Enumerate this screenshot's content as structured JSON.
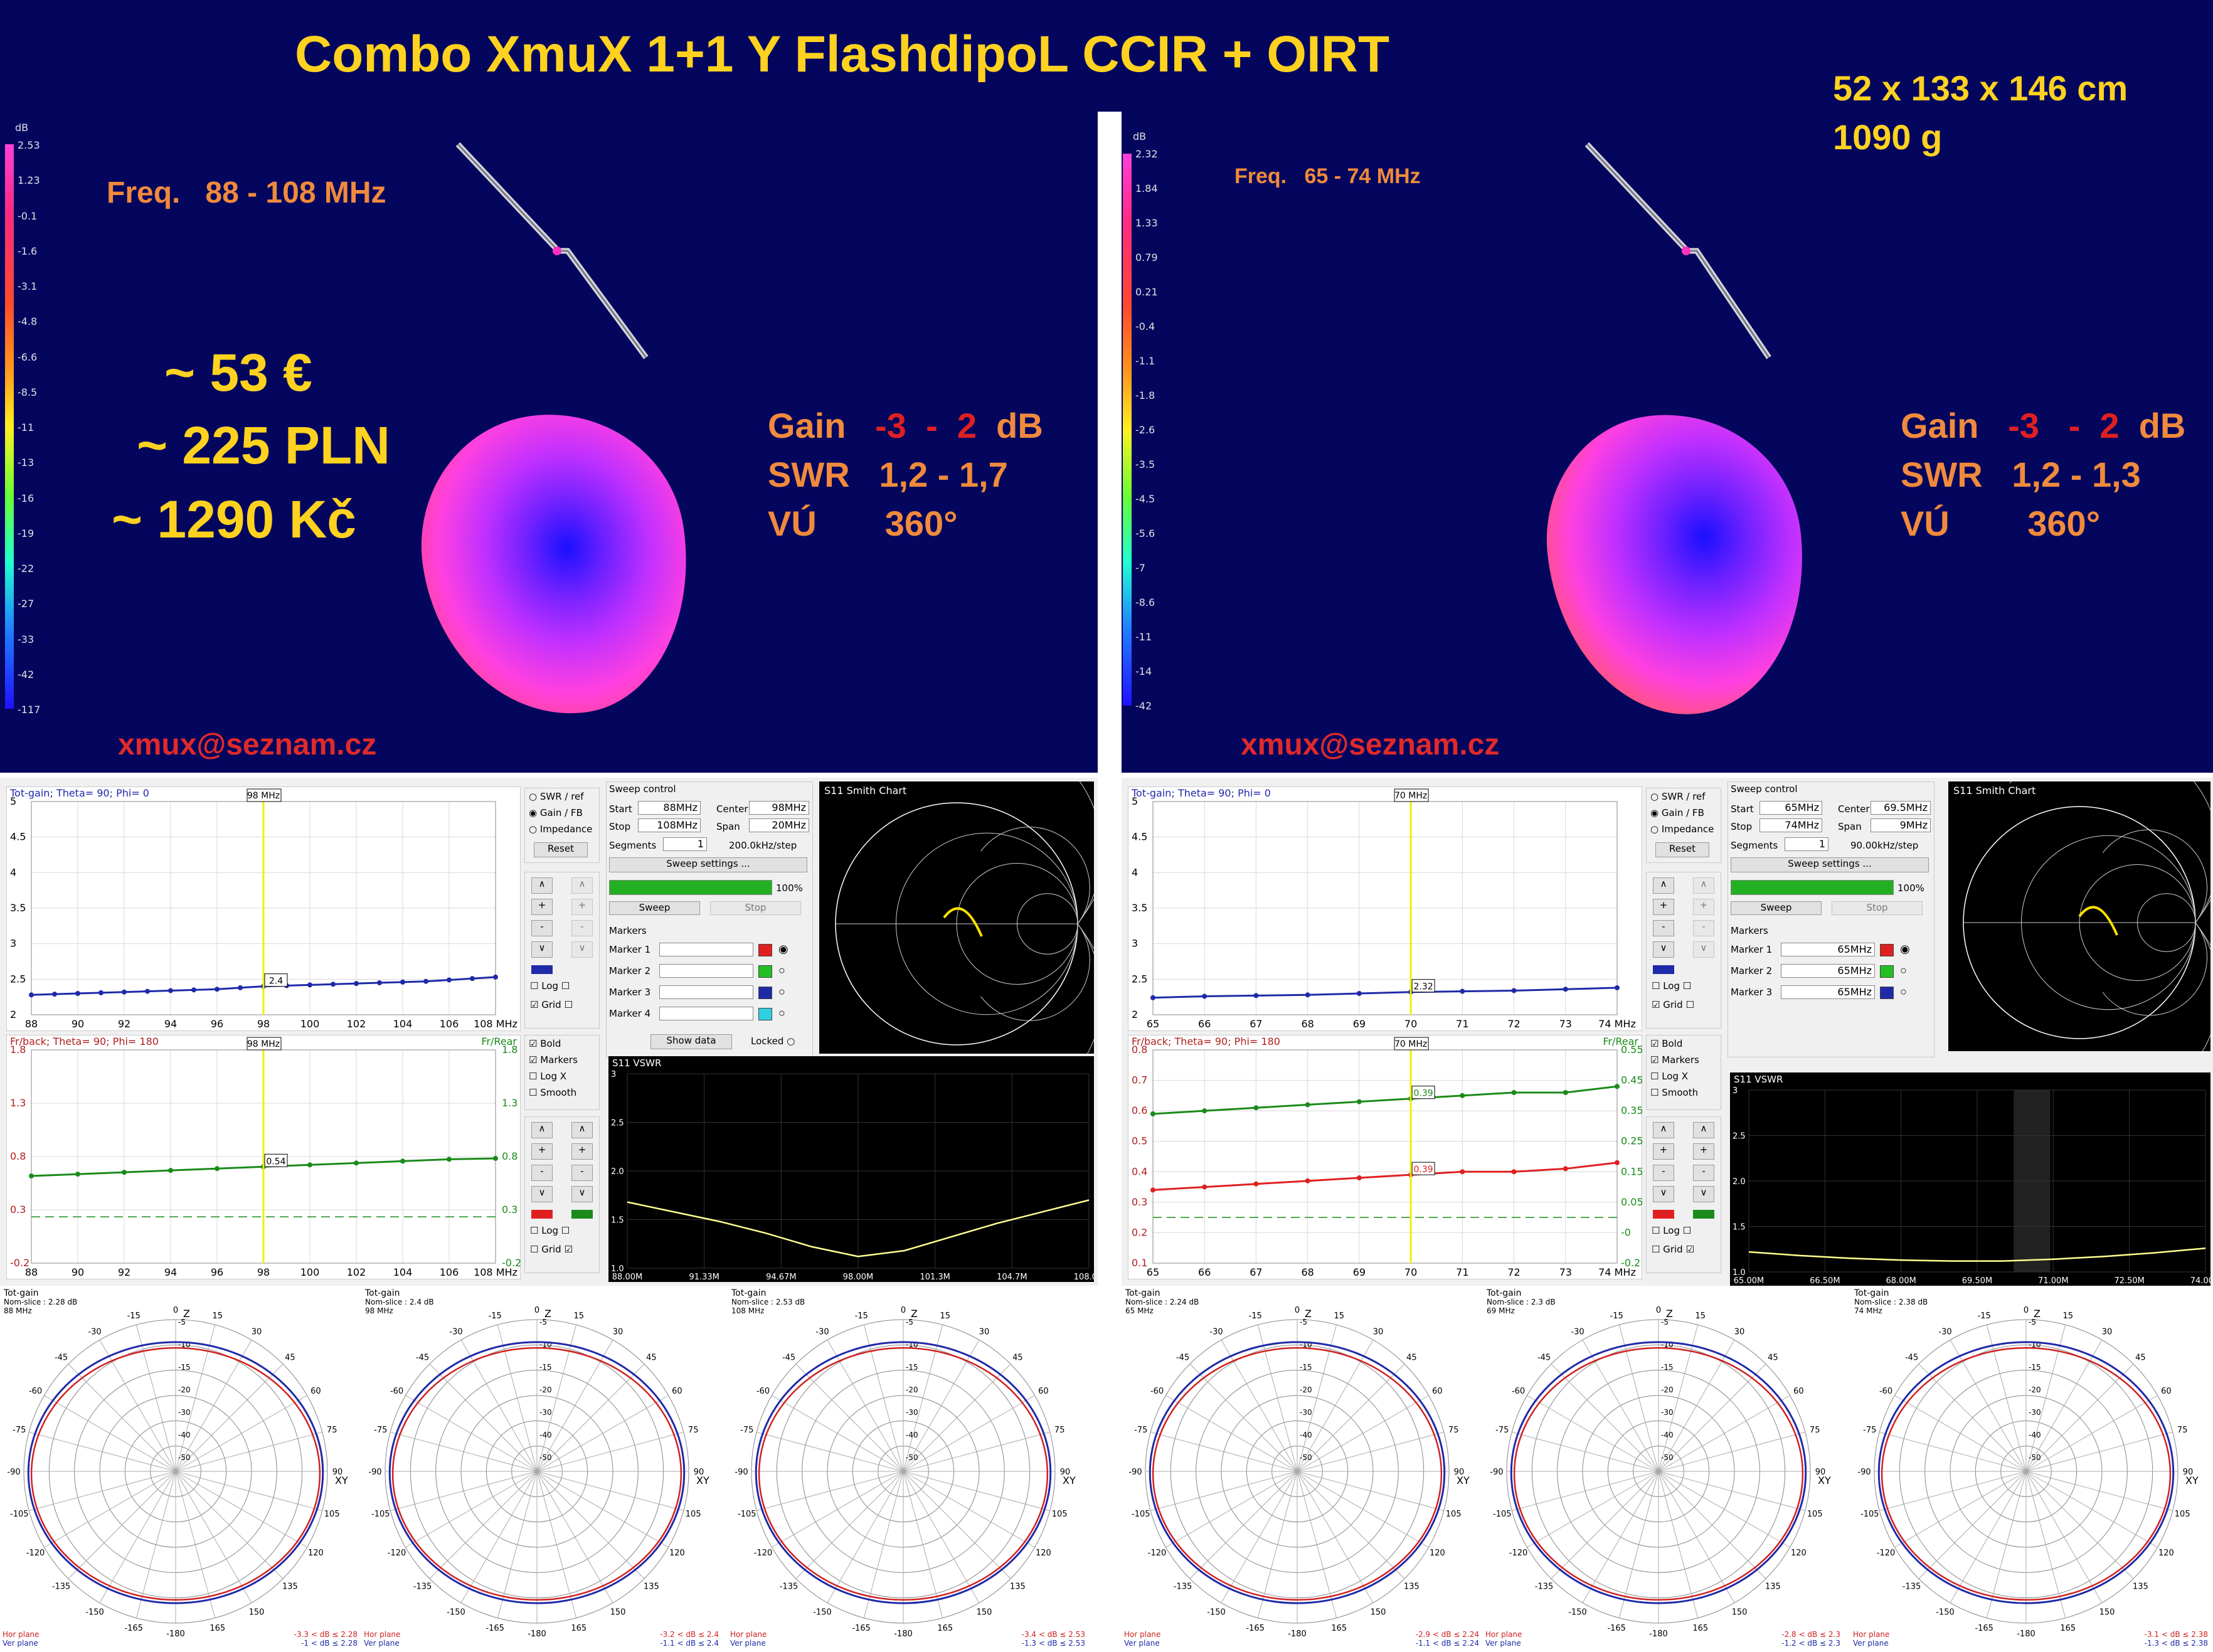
{
  "title": "Combo XmuX 1+1 Y FlashdipoL CCIR + OIRT",
  "dimensions": "52 x 133 x 146 cm",
  "weight": "1090 g",
  "price_eur": "~ 53 €",
  "price_pln": "~ 225 PLN",
  "price_czk": "~ 1290 Kč",
  "colors": {
    "navy": "#04065e",
    "orange": "#f08a3c",
    "yellow": "#ffd21f",
    "red": "#e02020",
    "blue": "#1f2aa8",
    "green": "#1a8a1a"
  },
  "left": {
    "freq_label": "Freq.",
    "freq_range": "88 - 108 MHz",
    "gain_label": "Gain",
    "gain_from": "-3",
    "gain_dash": "-",
    "gain_to": "2",
    "gain_unit": "dB",
    "swr_label": "SWR",
    "swr_value": "1,2 - 1,7",
    "vu_label": "VÚ",
    "vu_value": "360°",
    "email": "xmux@seznam.cz",
    "scale_unit": "dB",
    "scale": [
      "2.53",
      "1.23",
      "-0.1",
      "-1.6",
      "-3.1",
      "-4.8",
      "-6.6",
      "-8.5",
      "-11",
      "-13",
      "-16",
      "-19",
      "-22",
      "-27",
      "-33",
      "-42",
      "-117"
    ],
    "gain_chart": {
      "title": "Tot-gain; Theta= 90; Phi= 0",
      "marker": "98 MHz",
      "readout": "2.4",
      "y_ticks": [
        "5",
        "4.5",
        "4",
        "3.5",
        "3",
        "2.5",
        "2"
      ],
      "x_ticks": [
        "88",
        "90",
        "92",
        "94",
        "96",
        "98",
        "100",
        "102",
        "104",
        "106",
        "108 MHz"
      ],
      "x": [
        88,
        89,
        90,
        91,
        92,
        93,
        94,
        95,
        96,
        97,
        98,
        99,
        100,
        101,
        102,
        103,
        104,
        105,
        106,
        107,
        108
      ],
      "y": [
        2.28,
        2.29,
        2.3,
        2.31,
        2.32,
        2.33,
        2.34,
        2.35,
        2.36,
        2.38,
        2.4,
        2.41,
        2.42,
        2.43,
        2.44,
        2.45,
        2.46,
        2.47,
        2.49,
        2.51,
        2.53
      ],
      "ylim": [
        2,
        5
      ]
    },
    "fb_chart": {
      "title": "Fr/back; Theta= 90; Phi= 180",
      "right_title": "Fr/Rear",
      "marker": "98 MHz",
      "readout": "0.54",
      "y_ticks": [
        "1.8",
        "1.3",
        "0.8",
        "0.3",
        "-0.2"
      ],
      "x_ticks": [
        "88",
        "90",
        "92",
        "94",
        "96",
        "98",
        "100",
        "102",
        "104",
        "106",
        "108 MHz"
      ],
      "x": [
        88,
        90,
        92,
        94,
        96,
        98,
        100,
        102,
        104,
        106,
        108
      ],
      "y": [
        0.44,
        0.46,
        0.48,
        0.5,
        0.52,
        0.54,
        0.56,
        0.58,
        0.6,
        0.62,
        0.63
      ],
      "dashed": 0.0,
      "ylim": [
        -0.5,
        1.8
      ]
    },
    "options": [
      "SWR / ref",
      "Gain / FB",
      "Impedance"
    ],
    "reset_label": "Reset",
    "log_label": "Log",
    "grid_label": "Grid",
    "bold_label": "Bold",
    "markers_label": "Markers",
    "logx_label": "Log X",
    "smooth_label": "Smooth",
    "sweep": {
      "title": "Sweep control",
      "start_label": "Start",
      "start": "88MHz",
      "center_label": "Center",
      "center": "98MHz",
      "stop_label": "Stop",
      "stop": "108MHz",
      "span_label": "Span",
      "span": "20MHz",
      "segments_label": "Segments",
      "segments": "1",
      "step": "200.0kHz/step",
      "settings_button": "Sweep settings ...",
      "progress": 100,
      "progress_label": "100%",
      "sweep_button": "Sweep",
      "stop_button": "Stop",
      "markers_title": "Markers",
      "markers": [
        "Marker 1",
        "Marker 2",
        "Marker 3",
        "Marker 4"
      ],
      "show_data": "Show data",
      "locked": "Locked"
    },
    "smith_title": "S11 Smith Chart",
    "vswr": {
      "title": "S11 VSWR",
      "y_ticks": [
        "3",
        "2.5",
        "2.0",
        "1.5",
        "1.0"
      ],
      "x_ticks": [
        "88.00M",
        "91.33M",
        "94.67M",
        "98.00M",
        "101.3M",
        "104.7M",
        "108.0M"
      ],
      "x": [
        88,
        90,
        92,
        94,
        96,
        98,
        100,
        102,
        104,
        106,
        108
      ],
      "y": [
        1.68,
        1.58,
        1.48,
        1.36,
        1.22,
        1.12,
        1.18,
        1.32,
        1.46,
        1.58,
        1.7
      ],
      "ylim": [
        1,
        3
      ]
    },
    "polars": [
      {
        "title": "Tot-gain",
        "line1": "Nom-slice : 2.28 dB",
        "line2": "88 MHz",
        "hor": "Hor plane",
        "ver": "Ver plane",
        "r1": "-3.3 < dB ≤ 2.28",
        "r2": "-1 < dB ≤ 2.28"
      },
      {
        "title": "Tot-gain",
        "line1": "Nom-slice : 2.4 dB",
        "line2": "98 MHz",
        "hor": "Hor plane",
        "ver": "Ver plane",
        "r1": "-3.2 < dB ≤ 2.4",
        "r2": "-1.1 < dB ≤ 2.4"
      },
      {
        "title": "Tot-gain",
        "line1": "Nom-slice : 2.53 dB",
        "line2": "108 MHz",
        "hor": "Hor plane",
        "ver": "Ver plane",
        "r1": "-3.4 < dB ≤ 2.53",
        "r2": "-1.3 < dB ≤ 2.53"
      }
    ]
  },
  "right": {
    "freq_label": "Freq.",
    "freq_range": "65 - 74 MHz",
    "gain_label": "Gain",
    "gain_from": "-3",
    "gain_dash": "-",
    "gain_to": "2",
    "gain_unit": "dB",
    "swr_label": "SWR",
    "swr_value": "1,2 - 1,3",
    "vu_label": "VÚ",
    "vu_value": "360°",
    "email": "xmux@seznam.cz",
    "scale_unit": "dB",
    "scale": [
      "2.32",
      "1.84",
      "1.33",
      "0.79",
      "0.21",
      "-0.4",
      "-1.1",
      "-1.8",
      "-2.6",
      "-3.5",
      "-4.5",
      "-5.6",
      "-7",
      "-8.6",
      "-11",
      "-14",
      "-42"
    ],
    "gain_chart": {
      "title": "Tot-gain; Theta= 90; Phi= 0",
      "marker": "70 MHz",
      "readout": "2.32",
      "y_ticks": [
        "5",
        "4.5",
        "4",
        "3.5",
        "3",
        "2.5",
        "2"
      ],
      "x_ticks": [
        "65",
        "66",
        "67",
        "68",
        "69",
        "70",
        "71",
        "72",
        "73",
        "74 MHz"
      ],
      "x": [
        65,
        66,
        67,
        68,
        69,
        70,
        71,
        72,
        73,
        74
      ],
      "y": [
        2.24,
        2.26,
        2.27,
        2.28,
        2.3,
        2.32,
        2.33,
        2.34,
        2.36,
        2.38
      ],
      "ylim": [
        2,
        5
      ]
    },
    "fb_chart": {
      "title": "Fr/back; Theta= 90; Phi= 180",
      "right_title": "Fr/Rear",
      "marker": "70 MHz",
      "readout_green": "0.39",
      "readout_red": "0.39",
      "y_ticks": [
        "0.8",
        "0.7",
        "0.6",
        "0.5",
        "0.4",
        "0.3",
        "0.2",
        "0.1"
      ],
      "y2_ticks": [
        "0.55",
        "0.45",
        "0.35",
        "0.25",
        "0.15",
        "0.05",
        "-0",
        "-0.2"
      ],
      "x_ticks": [
        "65",
        "66",
        "67",
        "68",
        "69",
        "70",
        "71",
        "72",
        "73",
        "74 MHz"
      ],
      "x": [
        65,
        66,
        67,
        68,
        69,
        70,
        71,
        72,
        73,
        74
      ],
      "y_green": [
        0.59,
        0.6,
        0.61,
        0.62,
        0.63,
        0.64,
        0.65,
        0.66,
        0.66,
        0.68
      ],
      "y_red": [
        0.34,
        0.35,
        0.36,
        0.37,
        0.38,
        0.39,
        0.4,
        0.4,
        0.41,
        0.43
      ],
      "dashed": 0.25,
      "ylim": [
        0.1,
        0.8
      ]
    },
    "options": [
      "SWR / ref",
      "Gain / FB",
      "Impedance"
    ],
    "reset_label": "Reset",
    "log_label": "Log",
    "grid_label": "Grid",
    "bold_label": "Bold",
    "markers_label": "Markers",
    "logx_label": "Log X",
    "smooth_label": "Smooth",
    "sweep": {
      "title": "Sweep control",
      "start_label": "Start",
      "start": "65MHz",
      "center_label": "Center",
      "center": "69.5MHz",
      "stop_label": "Stop",
      "stop": "74MHz",
      "span_label": "Span",
      "span": "9MHz",
      "segments_label": "Segments",
      "segments": "1",
      "step": "90.00kHz/step",
      "settings_button": "Sweep settings ...",
      "progress": 100,
      "progress_label": "100%",
      "sweep_button": "Sweep",
      "stop_button": "Stop",
      "markers_title": "Markers",
      "markers": [
        "Marker 1",
        "Marker 2",
        "Marker 3"
      ],
      "marker_values": [
        "65MHz",
        "65MHz",
        "65MHz"
      ]
    },
    "smith_title": "S11 Smith Chart",
    "vswr": {
      "title": "S11 VSWR",
      "y_ticks": [
        "3",
        "2.5",
        "2.0",
        "1.5",
        "1.0"
      ],
      "x_ticks": [
        "65.00M",
        "66.50M",
        "68.00M",
        "69.50M",
        "71.00M",
        "72.50M",
        "74.00M"
      ],
      "x": [
        65,
        66,
        67,
        68,
        69,
        70,
        71,
        72,
        73,
        74
      ],
      "y": [
        1.22,
        1.18,
        1.15,
        1.13,
        1.12,
        1.12,
        1.14,
        1.17,
        1.21,
        1.26
      ],
      "ylim": [
        1,
        3
      ]
    },
    "polars": [
      {
        "title": "Tot-gain",
        "line1": "Nom-slice : 2.24 dB",
        "line2": "65 MHz",
        "hor": "Hor plane",
        "ver": "Ver plane",
        "r1": "-2.9 < dB ≤ 2.24",
        "r2": "-1.1 < dB ≤ 2.24"
      },
      {
        "title": "Tot-gain",
        "line1": "Nom-slice : 2.3 dB",
        "line2": "69 MHz",
        "hor": "Hor plane",
        "ver": "Ver plane",
        "r1": "-2.8 < dB ≤ 2.3",
        "r2": "-1.2 < dB ≤ 2.3"
      },
      {
        "title": "Tot-gain",
        "line1": "Nom-slice : 2.38 dB",
        "line2": "74 MHz",
        "hor": "Hor plane",
        "ver": "Ver plane",
        "r1": "-3.1 < dB ≤ 2.38",
        "r2": "-1.3 < dB ≤ 2.38"
      }
    ]
  },
  "polar_angles_left": [
    "0",
    "15",
    "30",
    "45",
    "60",
    "75",
    "90",
    "105",
    "120",
    "135",
    "150",
    "165",
    "-180",
    "-165",
    "-150",
    "-135",
    "-120",
    "-105",
    "-90",
    "-75",
    "-60",
    "-45",
    "-30",
    "-15"
  ],
  "polar_axis_labels": [
    "Z",
    "XY"
  ]
}
